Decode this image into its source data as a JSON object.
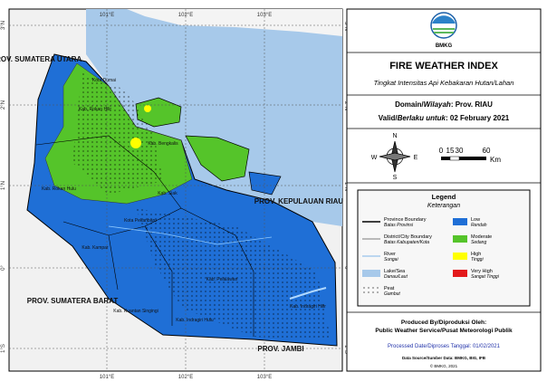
{
  "map": {
    "lat_labels": [
      "3°N",
      "2°N",
      "1°N",
      "0°",
      "1°S"
    ],
    "lon_labels": [
      "101°E",
      "102°E",
      "103°E"
    ],
    "provinces": [
      "PROV. SUMATERA UTARA",
      "PROV. SUMATERA BARAT",
      "PROV. JAMBI",
      "PROV. KEPULAUAN RIAU"
    ],
    "districts": [
      "Kab. Rokan Hilir",
      "Kota Dumai",
      "Kab. Bengkalis",
      "Kab. Rokan Hulu",
      "Kab. Siak",
      "Kota Pekanbaru",
      "Kab. Kampar",
      "Kab. Pelalawan",
      "Kab. Kuantan Singingi",
      "Kab. Indragiri Hulu",
      "Kab. Indragiri Hilir"
    ]
  },
  "panel": {
    "agency": "BMKG",
    "title": "FIRE WEATHER INDEX",
    "subtitle": "Tingkat Intensitas Api Kebakaran Hutan/Lahan",
    "domain_label": "Domain/",
    "domain_label_it": "Wilayah",
    "domain_value": ": Prov. RIAU",
    "valid_label": "Valid/",
    "valid_label_it": "Berlaku untuk",
    "valid_value": ": 02 February 2021",
    "compass": [
      "N",
      "S",
      "W",
      "E"
    ],
    "scale": [
      "0",
      "15",
      "30",
      "60"
    ],
    "scale_unit": "Km",
    "legend": {
      "title": "Legend",
      "subtitle": "Keterangan",
      "lines": [
        {
          "label": "Province Boundary",
          "sub": "Batas Provinsi"
        },
        {
          "label": "District/City Boundary",
          "sub": "Batas Kabupaten/Kota"
        },
        {
          "label": "River",
          "sub": "Sungai"
        },
        {
          "label": "Lake/Sea",
          "sub": "Danau/Laut"
        },
        {
          "label": "Peat",
          "sub": "Gambut"
        }
      ],
      "classes": [
        {
          "label": "Low",
          "sub": "Rendah",
          "color": "#1f6fd6"
        },
        {
          "label": "Moderate",
          "sub": "Sedang",
          "color": "#55c42a"
        },
        {
          "label": "High",
          "sub": "Tinggi",
          "color": "#ffff00"
        },
        {
          "label": "Very High",
          "sub": "Sangat Tinggi",
          "color": "#e31a1c"
        }
      ]
    },
    "produced": "Produced By/Diproduksi Oleh:",
    "produced_org": "Public Weather Service/Pusat Meteorologi Publik",
    "processed": "Processed Date/Diproses Tanggal: 01/02/2021",
    "source": "Data Source/Sumber Data: BMKG, BIG, IFB",
    "copyright": "© BMKG, 2021"
  }
}
